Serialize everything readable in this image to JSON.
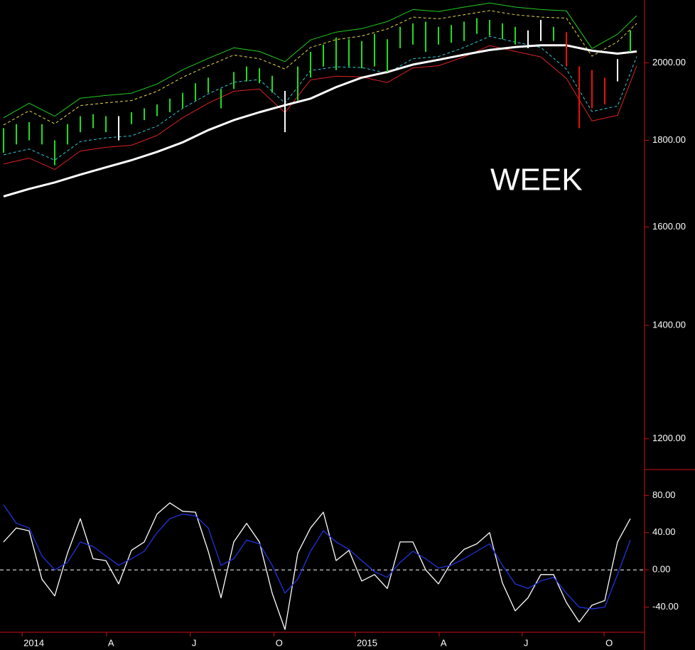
{
  "chart_data": [
    {
      "type": "ohlc",
      "annotation": "WEEK",
      "log_scale": true,
      "xlim": [
        -0.56,
        100.22
      ],
      "ylim": [
        1152,
        2178
      ],
      "yticks": [
        {
          "value": 2000,
          "label": "2000.00"
        },
        {
          "value": 1800,
          "label": "1800.00"
        },
        {
          "value": 1600,
          "label": "1600.00"
        },
        {
          "value": 1400,
          "label": "1400.00"
        },
        {
          "value": 1200,
          "label": "1200.00"
        }
      ],
      "bars": {
        "x": [
          0,
          2,
          4,
          6,
          8,
          10,
          12,
          14,
          16,
          18,
          20,
          22,
          24,
          26,
          28,
          30,
          32,
          34,
          36,
          38,
          40,
          42,
          44,
          46,
          48,
          50,
          52,
          54,
          56,
          58,
          60,
          62,
          64,
          66,
          68,
          70,
          72,
          74,
          76,
          78,
          80,
          82,
          84,
          86,
          88,
          90,
          92,
          94,
          96,
          98
        ],
        "high": [
          1830,
          1840,
          1845,
          1840,
          1800,
          1840,
          1860,
          1865,
          1860,
          1860,
          1870,
          1880,
          1890,
          1905,
          1920,
          1945,
          1960,
          1930,
          1975,
          1990,
          1985,
          1965,
          1925,
          1990,
          2030,
          2050,
          2070,
          2065,
          2060,
          2080,
          2065,
          2100,
          2110,
          2115,
          2100,
          2105,
          2115,
          2125,
          2120,
          2110,
          2100,
          2090,
          2120,
          2100,
          2085,
          1990,
          1980,
          1960,
          2010,
          2090
        ],
        "low": [
          1770,
          1790,
          1800,
          1790,
          1740,
          1790,
          1820,
          1830,
          1820,
          1800,
          1840,
          1850,
          1860,
          1870,
          1880,
          1900,
          1920,
          1880,
          1930,
          1950,
          1945,
          1920,
          1820,
          1900,
          1960,
          1990,
          1980,
          1990,
          1985,
          1990,
          1975,
          2040,
          2050,
          2030,
          2050,
          2055,
          2060,
          2080,
          2075,
          2065,
          2050,
          2040,
          2060,
          2060,
          1990,
          1830,
          1880,
          1890,
          1950,
          2030
        ],
        "colors": [
          "#22dd22",
          "#22dd22",
          "#22dd22",
          "#22dd22",
          "#22dd22",
          "#22dd22",
          "#22dd22",
          "#22dd22",
          "#22dd22",
          "#ffffff",
          "#22dd22",
          "#22dd22",
          "#22dd22",
          "#22dd22",
          "#22dd22",
          "#22dd22",
          "#22dd22",
          "#22dd22",
          "#22dd22",
          "#22dd22",
          "#22dd22",
          "#22dd22",
          "#ffffff",
          "#22dd22",
          "#22dd22",
          "#22dd22",
          "#22dd22",
          "#22dd22",
          "#22dd22",
          "#22dd22",
          "#22dd22",
          "#22dd22",
          "#22dd22",
          "#22dd22",
          "#22dd22",
          "#22dd22",
          "#22dd22",
          "#22dd22",
          "#22dd22",
          "#22dd22",
          "#22dd22",
          "#ffffff",
          "#ffffff",
          "#22dd22",
          "#ee1111",
          "#ee1111",
          "#ee1111",
          "#ee1111",
          "#ffffff",
          "#22dd22"
        ]
      },
      "series": [
        {
          "color": "#22cc22",
          "dashed": false,
          "line_width": 1,
          "x": [
            0,
            4,
            8,
            12,
            16,
            20,
            24,
            28,
            32,
            36,
            40,
            44,
            48,
            52,
            56,
            60,
            64,
            68,
            72,
            76,
            80,
            84,
            88,
            92,
            96,
            99
          ],
          "values": [
            1856,
            1893,
            1860,
            1906,
            1913,
            1919,
            1943,
            1981,
            2012,
            2041,
            2031,
            2003,
            2063,
            2085,
            2095,
            2115,
            2150,
            2144,
            2157,
            2169,
            2157,
            2150,
            2146,
            2039,
            2079,
            2132
          ]
        },
        {
          "color": "#e8d84a",
          "dashed": true,
          "line_width": 1,
          "x": [
            0,
            4,
            8,
            12,
            16,
            20,
            24,
            28,
            32,
            36,
            40,
            44,
            48,
            52,
            56,
            60,
            64,
            68,
            72,
            76,
            80,
            84,
            88,
            92,
            96,
            99
          ],
          "values": [
            1838,
            1874,
            1841,
            1887,
            1894,
            1900,
            1924,
            1961,
            1992,
            2021,
            2011,
            1983,
            2042,
            2064,
            2074,
            2094,
            2128,
            2123,
            2135,
            2147,
            2135,
            2128,
            2125,
            2018,
            2058,
            2110
          ]
        },
        {
          "color": "#33c8d8",
          "dashed": true,
          "line_width": 1,
          "x": [
            0,
            4,
            8,
            12,
            16,
            20,
            24,
            28,
            32,
            36,
            40,
            44,
            48,
            52,
            56,
            60,
            64,
            68,
            72,
            76,
            80,
            84,
            88,
            92,
            96,
            99
          ],
          "values": [
            1765,
            1779,
            1752,
            1797,
            1806,
            1811,
            1835,
            1880,
            1917,
            1948,
            1955,
            1893,
            1979,
            1989,
            1987,
            1972,
            2011,
            2017,
            2042,
            2073,
            2057,
            2042,
            1983,
            1872,
            1886,
            2017
          ]
        },
        {
          "color": "#dd2222",
          "dashed": false,
          "line_width": 1,
          "x": [
            0,
            4,
            8,
            12,
            16,
            20,
            24,
            28,
            32,
            36,
            40,
            44,
            48,
            52,
            56,
            60,
            64,
            68,
            72,
            76,
            80,
            84,
            88,
            92,
            96,
            99
          ],
          "values": [
            1743,
            1757,
            1730,
            1774,
            1783,
            1788,
            1812,
            1856,
            1893,
            1924,
            1930,
            1869,
            1954,
            1964,
            1962,
            1947,
            1986,
            1992,
            2016,
            2047,
            2031,
            2016,
            1958,
            1848,
            1862,
            1992
          ]
        },
        {
          "color": "#ffffff",
          "dashed": false,
          "line_width": 3,
          "x": [
            0,
            4,
            8,
            12,
            16,
            20,
            24,
            28,
            32,
            36,
            40,
            44,
            48,
            52,
            56,
            60,
            64,
            68,
            72,
            76,
            80,
            84,
            88,
            92,
            96,
            99
          ],
          "values": [
            1668,
            1685,
            1700,
            1718,
            1735,
            1752,
            1772,
            1795,
            1825,
            1850,
            1870,
            1888,
            1905,
            1935,
            1960,
            1975,
            1995,
            2008,
            2022,
            2035,
            2043,
            2048,
            2048,
            2033,
            2025,
            2031
          ]
        }
      ]
    },
    {
      "type": "line",
      "xlim": [
        -0.56,
        100.22
      ],
      "ylim": [
        -67,
        107
      ],
      "zero_line": 0,
      "yticks": [
        {
          "value": 80,
          "label": "80.00"
        },
        {
          "value": 40,
          "label": "40.00"
        },
        {
          "value": 0,
          "label": "0.00"
        },
        {
          "value": -40,
          "label": "-40.00"
        }
      ],
      "xticks": [
        {
          "value": 2.9,
          "label": "2014"
        },
        {
          "value": 16.1,
          "label": "A"
        },
        {
          "value": 29.2,
          "label": "J"
        },
        {
          "value": 42.3,
          "label": "O"
        },
        {
          "value": 55,
          "label": "2015"
        },
        {
          "value": 68.1,
          "label": "A"
        },
        {
          "value": 81.1,
          "label": "J"
        },
        {
          "value": 93.9,
          "label": "O"
        }
      ],
      "series": [
        {
          "color": "#ffffff",
          "x": [
            0,
            2,
            4,
            6,
            8,
            10,
            12,
            14,
            16,
            18,
            20,
            22,
            24,
            26,
            28,
            30,
            32,
            34,
            36,
            38,
            40,
            42,
            44,
            46,
            48,
            50,
            52,
            54,
            56,
            58,
            60,
            62,
            64,
            66,
            68,
            70,
            72,
            74,
            76,
            78,
            80,
            82,
            84,
            86,
            88,
            90,
            92,
            94,
            96,
            98
          ],
          "values": [
            30,
            45,
            42,
            -10,
            -28,
            18,
            55,
            12,
            10,
            -15,
            21,
            30,
            60,
            72,
            63,
            62,
            20,
            -30,
            30,
            50,
            30,
            -25,
            -64,
            18,
            45,
            62,
            10,
            21,
            -12,
            -5,
            -20,
            30,
            30,
            0,
            -15,
            8,
            22,
            28,
            40,
            -14,
            -44,
            -30,
            -5,
            -5,
            -35,
            -56,
            -38,
            -33,
            30,
            55
          ]
        },
        {
          "color": "#2233dd",
          "x": [
            0,
            2,
            4,
            6,
            8,
            10,
            12,
            14,
            16,
            18,
            20,
            22,
            24,
            26,
            28,
            30,
            32,
            34,
            36,
            38,
            40,
            42,
            44,
            46,
            48,
            50,
            52,
            54,
            56,
            58,
            60,
            62,
            64,
            66,
            68,
            70,
            72,
            74,
            76,
            78,
            80,
            82,
            84,
            86,
            88,
            90,
            92,
            94,
            96,
            98
          ],
          "values": [
            70,
            50,
            45,
            15,
            0,
            8,
            30,
            25,
            15,
            5,
            12,
            20,
            40,
            55,
            60,
            58,
            45,
            5,
            12,
            32,
            28,
            5,
            -25,
            -10,
            20,
            42,
            30,
            22,
            10,
            -2,
            -8,
            8,
            20,
            12,
            2,
            5,
            12,
            20,
            28,
            5,
            -15,
            -20,
            -12,
            -8,
            -25,
            -40,
            -42,
            -40,
            -5,
            32
          ]
        }
      ]
    }
  ]
}
